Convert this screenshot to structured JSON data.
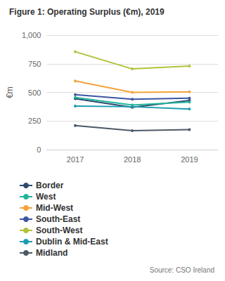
{
  "chart_data": {
    "type": "line",
    "title": "Figure 1: Operating Surplus (€m), 2019",
    "ylabel": "€m",
    "source": "Source: CSO Ireland",
    "categories": [
      "2017",
      "2018",
      "2019"
    ],
    "series": [
      {
        "name": "Border",
        "color": "#2e4a6e",
        "values": [
          445,
          370,
          430
        ]
      },
      {
        "name": "West",
        "color": "#22b59c",
        "values": [
          455,
          390,
          415
        ]
      },
      {
        "name": "Mid-West",
        "color": "#f5a33a",
        "values": [
          600,
          500,
          505
        ]
      },
      {
        "name": "South-East",
        "color": "#3d55a3",
        "values": [
          480,
          440,
          450
        ]
      },
      {
        "name": "South-West",
        "color": "#b2c23a",
        "values": [
          855,
          705,
          730
        ]
      },
      {
        "name": "Dublin & Mid-East",
        "color": "#1b9bb0",
        "values": [
          380,
          375,
          355
        ]
      },
      {
        "name": "Midland",
        "color": "#4b5966",
        "values": [
          210,
          165,
          175
        ]
      }
    ],
    "ylim": [
      0,
      1000
    ],
    "yticks": [
      0,
      250,
      500,
      750,
      1000
    ],
    "grid": true,
    "legend": "bottom",
    "marker": "circle"
  }
}
